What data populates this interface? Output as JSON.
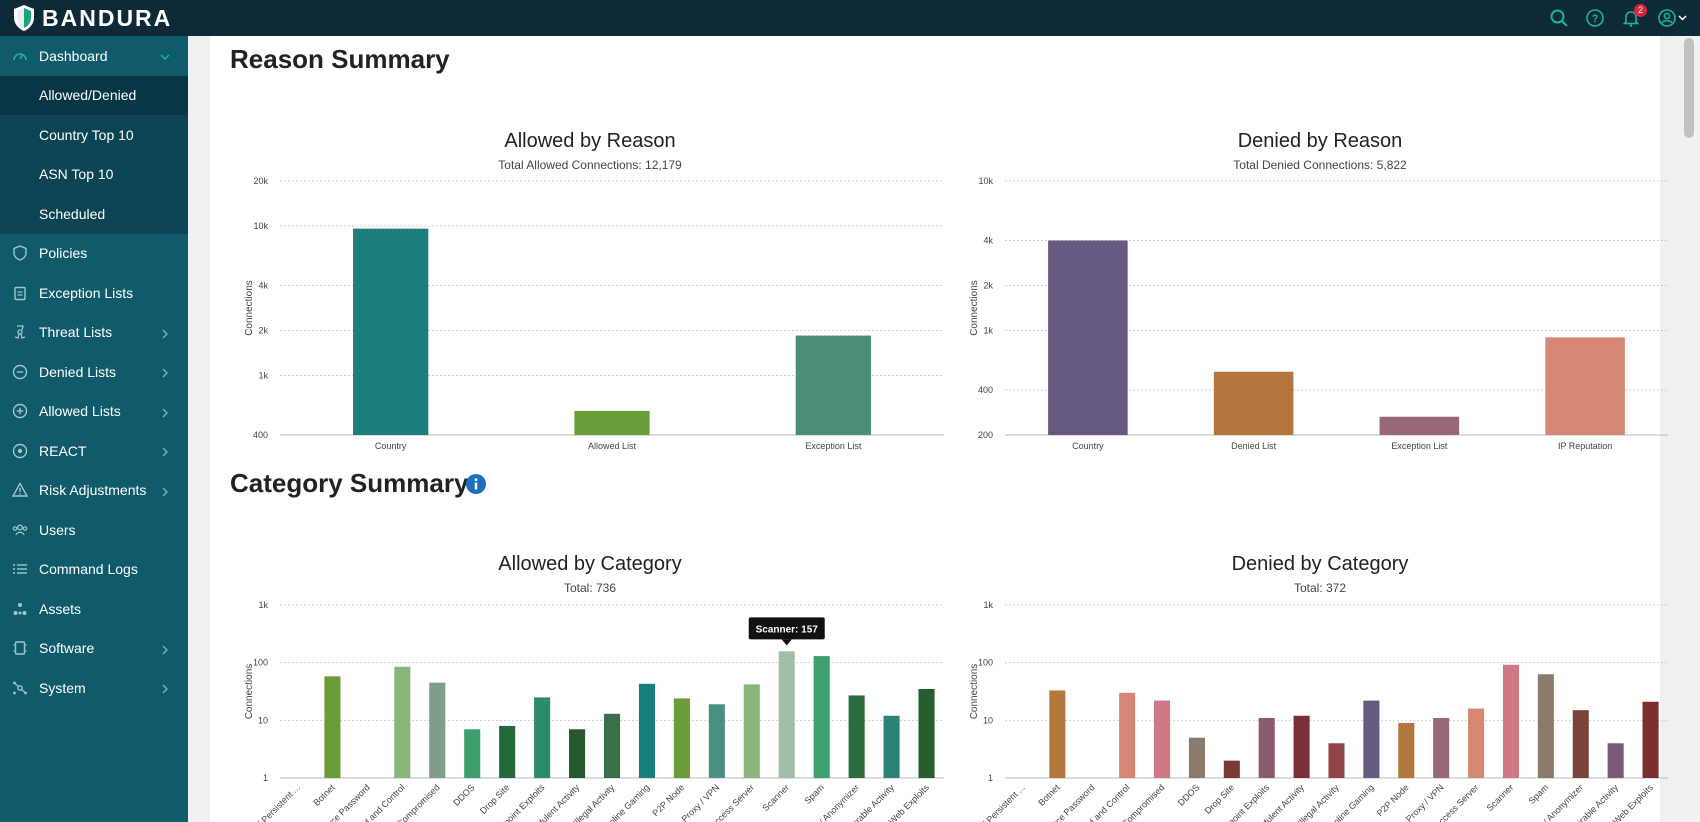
{
  "app": {
    "brand": "BANDURA",
    "notification_count": "2"
  },
  "topbar": {
    "icons": [
      "search-icon",
      "help-icon",
      "bell-icon",
      "user-icon"
    ]
  },
  "sidebar": {
    "dashboard_label": "Dashboard",
    "sub_items": [
      {
        "label": "Allowed/Denied",
        "active": true
      },
      {
        "label": "Country Top 10"
      },
      {
        "label": "ASN Top 10"
      },
      {
        "label": "Scheduled"
      }
    ],
    "items": [
      {
        "label": "Policies",
        "icon": "shield-icon",
        "chevron": false
      },
      {
        "label": "Exception Lists",
        "icon": "clipboard-icon",
        "chevron": false
      },
      {
        "label": "Threat Lists",
        "icon": "biohazard-icon",
        "chevron": true
      },
      {
        "label": "Denied Lists",
        "icon": "minus-circle-icon",
        "chevron": true
      },
      {
        "label": "Allowed Lists",
        "icon": "plus-circle-icon",
        "chevron": true
      },
      {
        "label": "REACT",
        "icon": "target-icon",
        "chevron": true
      },
      {
        "label": "Risk Adjustments",
        "icon": "warning-icon",
        "chevron": true
      },
      {
        "label": "Users",
        "icon": "users-icon",
        "chevron": false
      },
      {
        "label": "Command Logs",
        "icon": "list-icon",
        "chevron": false
      },
      {
        "label": "Assets",
        "icon": "assets-icon",
        "chevron": false
      },
      {
        "label": "Software",
        "icon": "software-icon",
        "chevron": true
      },
      {
        "label": "System",
        "icon": "system-icon",
        "chevron": true
      }
    ]
  },
  "main": {
    "reason_title": "Reason Summary",
    "category_title": "Category Summary"
  },
  "chart_data": [
    {
      "type": "bar",
      "title": "Allowed by Reason",
      "subtitle": "Total Allowed Connections: 12,179",
      "ylabel": "Connections",
      "yscale": "log",
      "ylim": [
        400,
        20000
      ],
      "yticks": [
        {
          "v": 400,
          "label": "400"
        },
        {
          "v": 1000,
          "label": "1k"
        },
        {
          "v": 2000,
          "label": "2k"
        },
        {
          "v": 4000,
          "label": "4k"
        },
        {
          "v": 10000,
          "label": "10k"
        },
        {
          "v": 20000,
          "label": "20k"
        }
      ],
      "categories": [
        "Country",
        "Allowed List",
        "Exception List"
      ],
      "values": [
        9600,
        580,
        1850
      ],
      "colors": [
        "#1a7f7d",
        "#6a9c3a",
        "#4a8e78"
      ]
    },
    {
      "type": "bar",
      "title": "Denied by Reason",
      "subtitle": "Total Denied Connections: 5,822",
      "ylabel": "Connections",
      "yscale": "log",
      "ylim": [
        200,
        10000
      ],
      "yticks": [
        {
          "v": 200,
          "label": "200"
        },
        {
          "v": 400,
          "label": "400"
        },
        {
          "v": 1000,
          "label": "1k"
        },
        {
          "v": 2000,
          "label": "2k"
        },
        {
          "v": 4000,
          "label": "4k"
        },
        {
          "v": 10000,
          "label": "10k"
        }
      ],
      "categories": [
        "Country",
        "Denied List",
        "Exception List",
        "IP Reputation"
      ],
      "values": [
        4000,
        530,
        265,
        900
      ],
      "colors": [
        "#665a80",
        "#b3773e",
        "#98687a",
        "#d68877"
      ]
    },
    {
      "type": "bar",
      "title": "Allowed by Category",
      "subtitle": "Total: 736",
      "ylabel": "Connections",
      "yscale": "log",
      "ylim": [
        1,
        1000
      ],
      "yticks": [
        {
          "v": 1,
          "label": "1"
        },
        {
          "v": 10,
          "label": "10"
        },
        {
          "v": 100,
          "label": "100"
        },
        {
          "v": 1000,
          "label": "1k"
        }
      ],
      "categories": [
        "Advanced Persistent ...",
        "Botnet",
        "Brute Force Password",
        "Command and Control",
        "Compromised",
        "DDOS",
        "Drop Site",
        "Endpoint Exploits",
        "Fraudulent Activity",
        "Illegal Activity",
        "Online Gaming",
        "P2P Node",
        "Proxy / VPN",
        "Remote Access Server",
        "Scanner",
        "Spam",
        "TOR / Anonymizer",
        "Undesirable Activity",
        "Web Exploits"
      ],
      "values": [
        null,
        58,
        null,
        85,
        45,
        7,
        8,
        25,
        7,
        13,
        43,
        24,
        19,
        42,
        157,
        130,
        27,
        12,
        35
      ],
      "colors": [
        "#4e8a3a",
        "#6a9c3a",
        "#7fa870",
        "#8ab57a",
        "#7e9e8a",
        "#3d9e6e",
        "#226b38",
        "#2e8a68",
        "#25592e",
        "#3a7048",
        "#17807c",
        "#6a9c3a",
        "#4a9080",
        "#8ab57a",
        "#a3bca8",
        "#3ea070",
        "#2b6c3c",
        "#2e8275",
        "#275c2d"
      ],
      "tooltip": {
        "label": "Scanner: 157",
        "category": "Scanner"
      }
    },
    {
      "type": "bar",
      "title": "Denied by Category",
      "subtitle": "Total: 372",
      "ylabel": "Connections",
      "yscale": "log",
      "ylim": [
        1,
        1000
      ],
      "yticks": [
        {
          "v": 1,
          "label": "1"
        },
        {
          "v": 10,
          "label": "10"
        },
        {
          "v": 100,
          "label": "100"
        },
        {
          "v": 1000,
          "label": "1k"
        }
      ],
      "categories": [
        "Advanced Persistent ...",
        "Botnet",
        "Brute Force Password",
        "Command and Control",
        "Compromised",
        "DDOS",
        "Drop Site",
        "Endpoint Exploits",
        "Fraudulent Activity",
        "Illegal Activity",
        "Online Gaming",
        "P2P Node",
        "Proxy / VPN",
        "Remote Access Server",
        "Scanner",
        "Spam",
        "TOR / Anonymizer",
        "Undesirable Activity",
        "Web Exploits"
      ],
      "values": [
        null,
        33,
        null,
        30,
        22,
        5,
        2,
        11,
        12,
        4,
        22,
        9,
        11,
        16,
        92,
        63,
        15,
        4,
        21
      ],
      "colors": [
        "#8a5a40",
        "#b3773e",
        "#c08a70",
        "#d68877",
        "#d07886",
        "#8a7a6a",
        "#7a3a34",
        "#8a5a70",
        "#7a2f38",
        "#8f4448",
        "#665a80",
        "#b3773e",
        "#98687a",
        "#d68870",
        "#d07886",
        "#8a7a6a",
        "#7a4438",
        "#7a5a78",
        "#7a2f2c"
      ]
    }
  ]
}
